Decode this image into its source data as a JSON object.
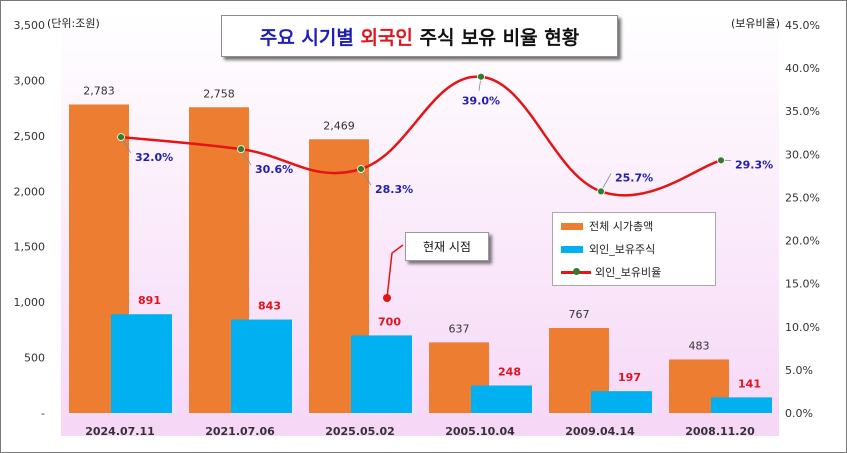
{
  "title": {
    "part1": "주요 시기별 ",
    "part2": "외국인",
    "part3": " 주식 보유 비율 현황"
  },
  "units": {
    "left": "(단위:조원)",
    "right": "(보유비율)"
  },
  "annotation": "현재 시점",
  "colors": {
    "market_cap": "#ed7d31",
    "foreign_holdings": "#00b0f0",
    "foreign_ratio": "#e31515",
    "ratio_marker": "#2f7d2f",
    "bar_label_red": "#e0141e",
    "ratio_label": "#1f1fb4"
  },
  "chart_data": {
    "type": "bar",
    "categories": [
      "2024.07.11",
      "2021.07.06",
      "2025.05.02",
      "2005.10.04",
      "2009.04.14",
      "2008.11.20"
    ],
    "series": [
      {
        "name": "전체 시가총액",
        "type": "bar",
        "axis": "left",
        "values": [
          2783,
          2758,
          2469,
          637,
          767,
          483
        ],
        "labels": [
          "2,783",
          "2,758",
          "2,469",
          "637",
          "767",
          "483"
        ]
      },
      {
        "name": "외인_보유주식",
        "type": "bar",
        "axis": "left",
        "values": [
          891,
          843,
          700,
          248,
          197,
          141
        ],
        "labels": [
          "891",
          "843",
          "700",
          "248",
          "197",
          "141"
        ]
      },
      {
        "name": "외인_보유비율",
        "type": "line",
        "axis": "right",
        "values": [
          32.0,
          30.6,
          28.3,
          39.0,
          25.7,
          29.3
        ],
        "labels": [
          "32.0%",
          "30.6%",
          "28.3%",
          "39.0%",
          "25.7%",
          "29.3%"
        ]
      }
    ],
    "left_axis": {
      "ylim": [
        0,
        3500
      ],
      "ticks": [
        "-",
        "500",
        "1,000",
        "1,500",
        "2,000",
        "2,500",
        "3,000",
        "3,500"
      ]
    },
    "right_axis": {
      "ylim": [
        0,
        45
      ],
      "ticks": [
        "0.0%",
        "5.0%",
        "10.0%",
        "15.0%",
        "20.0%",
        "25.0%",
        "30.0%",
        "35.0%",
        "40.0%",
        "45.0%"
      ]
    },
    "legend_position": "right-center",
    "grid": false
  }
}
